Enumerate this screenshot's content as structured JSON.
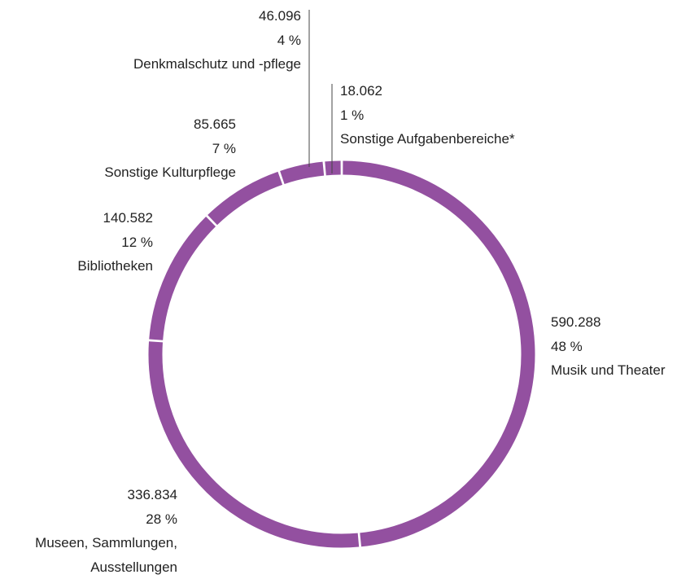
{
  "chart_data": {
    "type": "donut",
    "categories": [
      "Musik und Theater",
      "Museen, Sammlungen, Ausstellungen",
      "Bibliotheken",
      "Sonstige Kulturpflege",
      "Denkmalschutz und -pflege",
      "Sonstige Aufgabenbereiche*"
    ],
    "values": [
      590288,
      336834,
      140582,
      85665,
      46096,
      18062
    ],
    "value_labels": [
      "590.288",
      "336.834",
      "140.582",
      "85.665",
      "46.096",
      "18.062"
    ],
    "percent_labels": [
      "48 %",
      "28 %",
      "12 %",
      "7 %",
      "4 %",
      "1 %"
    ],
    "color": "#9350a0"
  }
}
